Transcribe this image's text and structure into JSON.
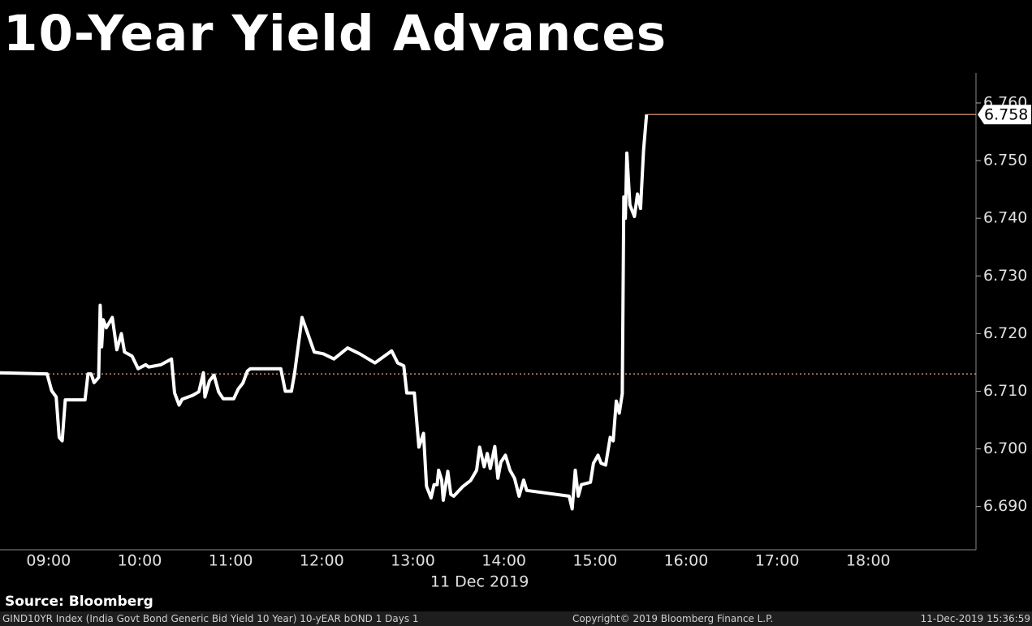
{
  "chart_data": {
    "type": "line",
    "title": "10-Year Yield Advances",
    "x_label": "11 Dec 2019",
    "source": "Source: Bloomberg",
    "footer_left": "GIND10YR Index (India Govt Bond Generic Bid Yield 10 Year) 10-yEAR bOND 1 Days 1",
    "footer_center": "Copyright© 2019 Bloomberg Finance L.P.",
    "footer_right": "11-Dec-2019 15:36:59",
    "color": "#ffffff",
    "x": [
      "08:28",
      "08:59",
      "09:02",
      "09:05",
      "09:07",
      "09:09",
      "09:11",
      "09:24",
      "09:26",
      "09:28",
      "09:30",
      "09:33",
      "09:34",
      "09:35",
      "09:36",
      "09:38",
      "09:42",
      "09:45",
      "09:48",
      "09:50",
      "09:55",
      "09:59",
      "10:04",
      "10:06",
      "10:14",
      "10:21",
      "10:23",
      "10:26",
      "10:28",
      "10:35",
      "10:39",
      "10:42",
      "10:43",
      "10:46",
      "10:49",
      "10:52",
      "10:55",
      "11:02",
      "11:05",
      "11:08",
      "11:11",
      "11:13",
      "11:33",
      "11:36",
      "11:40",
      "11:42",
      "11:47",
      "11:55",
      "12:01",
      "12:08",
      "12:17",
      "12:25",
      "12:35",
      "12:46",
      "12:50",
      "12:54",
      "12:56",
      "13:01",
      "13:04",
      "13:07",
      "13:09",
      "13:12",
      "13:14",
      "13:16",
      "13:17",
      "13:19",
      "13:20",
      "13:23",
      "13:25",
      "13:27",
      "13:33",
      "13:38",
      "13:42",
      "13:44",
      "13:47",
      "13:49",
      "13:51",
      "13:54",
      "13:56",
      "13:58",
      "14:01",
      "14:04",
      "14:07",
      "14:10",
      "14:13",
      "14:15",
      "14:43",
      "14:45",
      "14:47",
      "14:49",
      "14:51",
      "14:57",
      "14:59",
      "15:02",
      "15:04",
      "15:07",
      "15:10",
      "15:12",
      "15:14",
      "15:16",
      "15:18",
      "15:19",
      "15:20",
      "15:21",
      "15:23",
      "15:26",
      "15:28",
      "15:30",
      "15:32",
      "15:34"
    ],
    "values": [
      6.7132,
      6.713,
      6.7101,
      6.709,
      6.702,
      6.7014,
      6.7085,
      6.7085,
      6.713,
      6.713,
      6.7115,
      6.7124,
      6.7249,
      6.7177,
      6.7224,
      6.721,
      6.7228,
      6.7172,
      6.72,
      6.7168,
      6.7161,
      6.7139,
      6.7146,
      6.7142,
      6.7146,
      6.7156,
      6.7097,
      6.7076,
      6.7086,
      6.7093,
      6.7099,
      6.7132,
      6.709,
      6.7118,
      6.7128,
      6.7099,
      6.7087,
      6.7087,
      6.7104,
      6.7114,
      6.7135,
      6.7139,
      6.7139,
      6.71,
      6.71,
      6.713,
      6.7228,
      6.7168,
      6.7165,
      6.7156,
      6.7175,
      6.7165,
      6.7149,
      6.717,
      6.7149,
      6.7144,
      6.7097,
      6.7097,
      6.7003,
      6.7027,
      6.6935,
      6.6915,
      6.6938,
      6.6938,
      6.6963,
      6.6946,
      6.6911,
      6.6961,
      6.6921,
      6.6918,
      6.6935,
      6.6945,
      6.6963,
      6.7003,
      6.6969,
      6.6992,
      6.6966,
      6.7004,
      6.6949,
      6.6977,
      6.6989,
      6.6963,
      6.6949,
      6.6918,
      6.6946,
      6.6928,
      6.6918,
      6.6896,
      6.6963,
      6.6918,
      6.6938,
      6.6942,
      6.6975,
      6.6989,
      6.6975,
      6.6972,
      6.702,
      6.7014,
      6.7083,
      6.7062,
      6.7096,
      6.7437,
      6.74,
      6.7513,
      6.7423,
      6.7403,
      6.7442,
      6.7417,
      6.7518,
      6.758
    ],
    "last_value": 6.758,
    "last_color": "#f4a77a",
    "reference_value": 6.713,
    "reference_color": "#f4a77a",
    "xlim": [
      "08:28",
      "19:11"
    ],
    "xticks": [
      "09:00",
      "10:00",
      "11:00",
      "12:00",
      "13:00",
      "14:00",
      "15:00",
      "16:00",
      "17:00",
      "18:00"
    ],
    "ylim": [
      6.6825,
      6.7652
    ],
    "yticks": [
      {
        "value": 6.69,
        "label": "6.690"
      },
      {
        "value": 6.7,
        "label": "6.700"
      },
      {
        "value": 6.71,
        "label": "6.710"
      },
      {
        "value": 6.72,
        "label": "6.720"
      },
      {
        "value": 6.73,
        "label": "6.730"
      },
      {
        "value": 6.74,
        "label": "6.740"
      },
      {
        "value": 6.75,
        "label": "6.750"
      },
      {
        "value": 6.76,
        "label": "6.760"
      }
    ]
  }
}
